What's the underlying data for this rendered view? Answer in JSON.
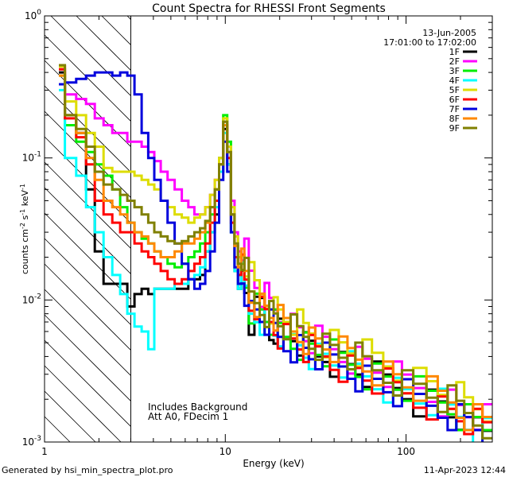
{
  "chart_data": {
    "type": "line",
    "title": "Count Spectra for RHESSI Front Segments",
    "xlabel": "Energy (keV)",
    "ylabel": "counts cm-2 s-1 keV-1",
    "ylabel_parts": {
      "base": "counts cm",
      "e1": "-2",
      "mid1": " s",
      "e2": "-1",
      "mid2": " keV",
      "e3": "-1"
    },
    "xscale": "log",
    "yscale": "log",
    "xlim": [
      1,
      300
    ],
    "ylim": [
      0.001,
      1
    ],
    "x_ticks": [
      {
        "value": 1,
        "label": "1"
      },
      {
        "value": 10,
        "label": "10"
      },
      {
        "value": 100,
        "label": "100"
      }
    ],
    "y_ticks": [
      {
        "value": 0.001,
        "base": "10",
        "exp": "-3"
      },
      {
        "value": 0.01,
        "base": "10",
        "exp": "-2"
      },
      {
        "value": 0.1,
        "base": "10",
        "exp": "-1"
      },
      {
        "value": 1,
        "base": "10",
        "exp": "0"
      }
    ],
    "date": "13-Jun-2005",
    "time_range": "17:01:00 to 17:02:00",
    "annotations": [
      "Includes Background",
      "Att A0, FDecim 1"
    ],
    "shaded_region": {
      "x_range": [
        1,
        3
      ],
      "pattern": "diagonal-hatch"
    },
    "energy_bins": [
      1.2,
      1.4,
      1.6,
      1.8,
      2.0,
      2.25,
      2.5,
      2.75,
      3.0,
      3.3,
      3.6,
      3.9,
      4.2,
      4.6,
      5.0,
      5.5,
      6.0,
      6.5,
      7.0,
      7.5,
      8.0,
      8.5,
      9.0,
      9.5,
      10.0,
      10.5,
      11.0,
      11.5,
      12.0,
      12.5,
      13,
      14,
      15,
      16,
      17,
      18,
      19,
      20,
      22,
      24,
      26,
      28,
      30,
      33,
      36,
      40,
      45,
      50,
      55,
      60,
      70,
      80,
      90,
      100,
      120,
      140,
      160,
      180,
      200,
      220,
      250,
      280
    ],
    "series": [
      {
        "name": "1F",
        "color": "#000000",
        "values": [
          0.4,
          0.2,
          0.15,
          0.06,
          0.022,
          0.013,
          0.013,
          0.013,
          0.009,
          0.011,
          0.012,
          0.011,
          0.012,
          0.012,
          0.012,
          0.012,
          0.012,
          0.014,
          0.014,
          0.015,
          0.022,
          0.03,
          0.04,
          0.08,
          0.16,
          0.09,
          0.03,
          0.016,
          0.012,
          0.015,
          0.012,
          0.007,
          0.008,
          0.009,
          0.007,
          0.006,
          0.0065,
          0.006,
          0.005,
          0.0055,
          0.005,
          0.0045,
          0.0045,
          0.004,
          0.0042,
          0.0038,
          0.0035,
          0.0033,
          0.0032,
          0.003,
          0.0028,
          0.0026,
          0.0024,
          0.0023,
          0.002,
          0.0019,
          0.0018,
          0.0016,
          0.0015,
          0.0014,
          0.0013,
          0.0012
        ]
      },
      {
        "name": "2F",
        "color": "#ff00ff",
        "values": [
          0.44,
          0.28,
          0.26,
          0.24,
          0.19,
          0.17,
          0.15,
          0.15,
          0.13,
          0.13,
          0.12,
          0.11,
          0.095,
          0.08,
          0.07,
          0.06,
          0.05,
          0.045,
          0.04,
          0.04,
          0.045,
          0.055,
          0.07,
          0.1,
          0.18,
          0.12,
          0.05,
          0.03,
          0.022,
          0.025,
          0.022,
          0.015,
          0.013,
          0.011,
          0.01,
          0.009,
          0.0085,
          0.008,
          0.007,
          0.0065,
          0.006,
          0.0055,
          0.0052,
          0.005,
          0.0048,
          0.0045,
          0.0042,
          0.004,
          0.0038,
          0.0036,
          0.0033,
          0.003,
          0.0028,
          0.0026,
          0.0024,
          0.0022,
          0.002,
          0.0019,
          0.0017,
          0.0016,
          0.0015,
          0.0014
        ]
      },
      {
        "name": "3F",
        "color": "#00ee00",
        "values": [
          0.38,
          0.17,
          0.13,
          0.11,
          0.09,
          0.075,
          0.06,
          0.045,
          0.035,
          0.03,
          0.027,
          0.025,
          0.022,
          0.02,
          0.018,
          0.017,
          0.018,
          0.02,
          0.022,
          0.025,
          0.03,
          0.04,
          0.06,
          0.1,
          0.2,
          0.13,
          0.04,
          0.02,
          0.015,
          0.018,
          0.014,
          0.009,
          0.009,
          0.008,
          0.0075,
          0.007,
          0.0065,
          0.006,
          0.0055,
          0.0052,
          0.005,
          0.0048,
          0.0046,
          0.0044,
          0.0042,
          0.004,
          0.0037,
          0.0035,
          0.0033,
          0.0031,
          0.0029,
          0.0027,
          0.0025,
          0.0024,
          0.0022,
          0.002,
          0.0019,
          0.0018,
          0.0016,
          0.0015,
          0.0014,
          0.0013
        ]
      },
      {
        "name": "4F",
        "color": "#00ffff",
        "values": [
          0.3,
          0.1,
          0.075,
          0.045,
          0.03,
          0.02,
          0.015,
          0.011,
          0.008,
          0.0065,
          0.006,
          0.0045,
          0.012,
          0.012,
          0.012,
          0.013,
          0.013,
          0.014,
          0.015,
          0.017,
          0.022,
          0.03,
          0.045,
          0.08,
          0.15,
          0.09,
          0.03,
          0.016,
          0.012,
          0.014,
          0.011,
          0.008,
          0.008,
          0.0075,
          0.007,
          0.0065,
          0.006,
          0.0058,
          0.0053,
          0.005,
          0.0048,
          0.0045,
          0.0043,
          0.004,
          0.0039,
          0.0037,
          0.0035,
          0.0033,
          0.0031,
          0.0029,
          0.0027,
          0.0025,
          0.0023,
          0.0022,
          0.002,
          0.0019,
          0.0018,
          0.0016,
          0.0015,
          0.0014,
          0.0013,
          0.0012
        ]
      },
      {
        "name": "5F",
        "color": "#dddd00",
        "values": [
          0.44,
          0.25,
          0.2,
          0.15,
          0.12,
          0.085,
          0.08,
          0.08,
          0.08,
          0.075,
          0.07,
          0.065,
          0.06,
          0.05,
          0.045,
          0.04,
          0.038,
          0.035,
          0.038,
          0.04,
          0.045,
          0.055,
          0.07,
          0.1,
          0.19,
          0.12,
          0.045,
          0.028,
          0.02,
          0.022,
          0.018,
          0.014,
          0.012,
          0.011,
          0.01,
          0.009,
          0.0085,
          0.008,
          0.0075,
          0.007,
          0.0065,
          0.006,
          0.0058,
          0.0055,
          0.0052,
          0.005,
          0.0047,
          0.0045,
          0.0042,
          0.004,
          0.0037,
          0.0034,
          0.0031,
          0.0029,
          0.0027,
          0.0025,
          0.0023,
          0.0021,
          0.002,
          0.0018,
          0.0017,
          0.0016
        ]
      },
      {
        "name": "6F",
        "color": "#ff0000",
        "values": [
          0.42,
          0.19,
          0.14,
          0.09,
          0.05,
          0.04,
          0.035,
          0.03,
          0.03,
          0.025,
          0.022,
          0.02,
          0.018,
          0.016,
          0.014,
          0.013,
          0.014,
          0.016,
          0.018,
          0.02,
          0.025,
          0.035,
          0.05,
          0.09,
          0.17,
          0.1,
          0.035,
          0.02,
          0.015,
          0.017,
          0.013,
          0.009,
          0.009,
          0.008,
          0.0075,
          0.007,
          0.0065,
          0.006,
          0.0055,
          0.005,
          0.0048,
          0.0045,
          0.0043,
          0.0041,
          0.004,
          0.0037,
          0.0035,
          0.0033,
          0.0031,
          0.0029,
          0.0027,
          0.0025,
          0.0023,
          0.0022,
          0.002,
          0.0019,
          0.0017,
          0.0016,
          0.0015,
          0.0014,
          0.0013,
          0.0012
        ]
      },
      {
        "name": "7F",
        "color": "#0000dd",
        "values": [
          0.33,
          0.34,
          0.36,
          0.38,
          0.4,
          0.4,
          0.38,
          0.4,
          0.38,
          0.28,
          0.15,
          0.1,
          0.07,
          0.05,
          0.035,
          0.025,
          0.018,
          0.014,
          0.012,
          0.013,
          0.016,
          0.022,
          0.035,
          0.07,
          0.13,
          0.08,
          0.03,
          0.017,
          0.013,
          0.015,
          0.012,
          0.008,
          0.008,
          0.0075,
          0.007,
          0.0065,
          0.006,
          0.0055,
          0.005,
          0.0048,
          0.0046,
          0.0043,
          0.0041,
          0.004,
          0.0038,
          0.0036,
          0.0034,
          0.0032,
          0.003,
          0.0028,
          0.0026,
          0.0024,
          0.0022,
          0.0021,
          0.0019,
          0.0018,
          0.0017,
          0.0016,
          0.0015,
          0.0014,
          0.0013,
          0.0012
        ]
      },
      {
        "name": "8F",
        "color": "#ff8800",
        "values": [
          0.38,
          0.2,
          0.15,
          0.1,
          0.07,
          0.05,
          0.045,
          0.04,
          0.035,
          0.03,
          0.028,
          0.025,
          0.022,
          0.02,
          0.02,
          0.022,
          0.025,
          0.025,
          0.027,
          0.03,
          0.035,
          0.045,
          0.06,
          0.09,
          0.17,
          0.11,
          0.04,
          0.024,
          0.017,
          0.02,
          0.016,
          0.011,
          0.01,
          0.009,
          0.0085,
          0.008,
          0.0075,
          0.007,
          0.0065,
          0.006,
          0.0058,
          0.0055,
          0.0052,
          0.005,
          0.0048,
          0.0045,
          0.0042,
          0.004,
          0.0038,
          0.0036,
          0.0033,
          0.003,
          0.0028,
          0.0026,
          0.0024,
          0.0022,
          0.002,
          0.0019,
          0.0017,
          0.0016,
          0.0015,
          0.0014
        ]
      },
      {
        "name": "9F",
        "color": "#808000",
        "values": [
          0.45,
          0.2,
          0.16,
          0.12,
          0.08,
          0.065,
          0.06,
          0.055,
          0.05,
          0.045,
          0.04,
          0.035,
          0.03,
          0.028,
          0.026,
          0.025,
          0.026,
          0.028,
          0.03,
          0.032,
          0.036,
          0.045,
          0.06,
          0.09,
          0.18,
          0.11,
          0.04,
          0.025,
          0.018,
          0.02,
          0.015,
          0.01,
          0.0095,
          0.009,
          0.0085,
          0.008,
          0.0075,
          0.007,
          0.0065,
          0.006,
          0.0057,
          0.0055,
          0.0052,
          0.005,
          0.0047,
          0.0045,
          0.0042,
          0.004,
          0.0038,
          0.0035,
          0.0032,
          0.003,
          0.0028,
          0.0026,
          0.0024,
          0.0022,
          0.002,
          0.0019,
          0.0017,
          0.0016,
          0.0015,
          0.0014
        ]
      }
    ]
  },
  "footer": {
    "generated_by": "Generated by hsi_min_spectra_plot.pro",
    "timestamp": "11-Apr-2023 12:44"
  }
}
